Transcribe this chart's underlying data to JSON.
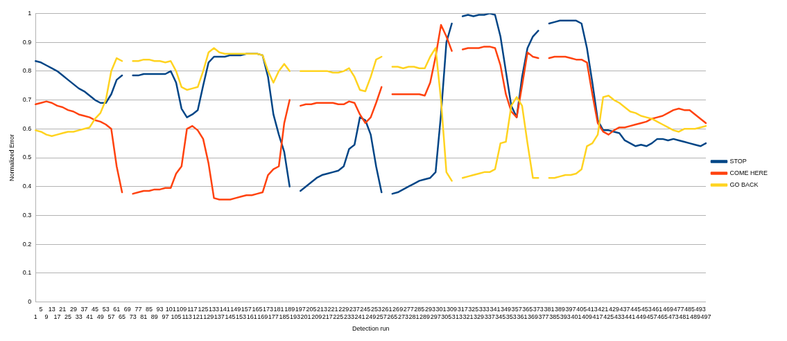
{
  "chart_data": {
    "type": "line",
    "xlabel": "Detection run",
    "ylabel": "Normalized Error",
    "ylim": [
      0,
      1
    ],
    "yticks": [
      0,
      0.1,
      0.2,
      0.3,
      0.4,
      0.5,
      0.6,
      0.7,
      0.8,
      0.9,
      1
    ],
    "grid": "y",
    "legend": "right",
    "marker": "none",
    "line_style": "solid",
    "categories": [
      "1",
      "5",
      "9",
      "13",
      "17",
      "21",
      "25",
      "29",
      "33",
      "37",
      "41",
      "45",
      "49",
      "53",
      "57",
      "61",
      "65",
      "69",
      "73",
      "77",
      "81",
      "85",
      "89",
      "93",
      "97",
      "101",
      "105",
      "109",
      "113",
      "117",
      "121",
      "125",
      "129",
      "133",
      "137",
      "141",
      "145",
      "149",
      "153",
      "157",
      "161",
      "165",
      "169",
      "173",
      "177",
      "181",
      "185",
      "189",
      "193",
      "197",
      "201",
      "205",
      "209",
      "213",
      "217",
      "221",
      "225",
      "229",
      "233",
      "237",
      "241",
      "245",
      "249",
      "253",
      "257",
      "261",
      "265",
      "269",
      "273",
      "277",
      "281",
      "285",
      "289",
      "293",
      "297",
      "301",
      "305",
      "309",
      "313",
      "317",
      "321",
      "325",
      "329",
      "333",
      "337",
      "341",
      "345",
      "349",
      "353",
      "357",
      "361",
      "365",
      "369",
      "373",
      "377",
      "381",
      "385",
      "389",
      "393",
      "397",
      "401",
      "405",
      "409",
      "413",
      "417",
      "421",
      "425",
      "429",
      "433",
      "437",
      "441",
      "445",
      "449",
      "453",
      "457",
      "461",
      "465",
      "469",
      "473",
      "477",
      "481",
      "485",
      "489",
      "493",
      "497"
    ],
    "series": [
      {
        "name": "STOP",
        "color": "#004586",
        "values": [
          0.835,
          0.83,
          0.82,
          0.81,
          0.8,
          0.785,
          0.77,
          0.755,
          0.74,
          0.73,
          0.715,
          0.7,
          0.69,
          0.69,
          0.72,
          0.77,
          0.785,
          null,
          0.785,
          0.785,
          0.79,
          0.79,
          0.79,
          0.79,
          0.79,
          0.8,
          0.76,
          0.67,
          0.64,
          0.65,
          0.665,
          0.75,
          0.83,
          0.85,
          0.85,
          0.85,
          0.855,
          0.855,
          0.855,
          0.86,
          0.86,
          0.86,
          0.855,
          0.78,
          0.65,
          0.58,
          0.52,
          0.4,
          null,
          0.385,
          0.4,
          0.415,
          0.43,
          0.44,
          0.445,
          0.45,
          0.455,
          0.47,
          0.53,
          0.545,
          0.64,
          0.63,
          0.58,
          0.47,
          0.38,
          null,
          0.375,
          0.38,
          0.39,
          0.4,
          0.41,
          0.42,
          0.425,
          0.43,
          0.45,
          0.65,
          0.9,
          0.965,
          null,
          0.99,
          0.995,
          0.99,
          0.995,
          0.995,
          1,
          0.995,
          0.92,
          0.8,
          0.68,
          0.64,
          0.78,
          0.88,
          0.92,
          0.94,
          null,
          0.965,
          0.97,
          0.975,
          0.975,
          0.975,
          0.975,
          0.965,
          0.88,
          0.76,
          0.63,
          0.595,
          0.595,
          0.59,
          0.585,
          0.56,
          0.55,
          0.54,
          0.545,
          0.54,
          0.55,
          0.565,
          0.565,
          0.56,
          0.565,
          0.56,
          0.555,
          0.55,
          0.545,
          0.54,
          0.55
        ]
      },
      {
        "name": "COME HERE",
        "color": "#ff420e",
        "values": [
          0.685,
          0.69,
          0.695,
          0.69,
          0.68,
          0.675,
          0.665,
          0.66,
          0.65,
          0.645,
          0.64,
          0.63,
          0.625,
          0.615,
          0.6,
          0.47,
          0.38,
          null,
          0.375,
          0.38,
          0.385,
          0.385,
          0.39,
          0.39,
          0.395,
          0.395,
          0.445,
          0.47,
          0.6,
          0.61,
          0.595,
          0.565,
          0.48,
          0.36,
          0.355,
          0.355,
          0.355,
          0.36,
          0.365,
          0.37,
          0.37,
          0.375,
          0.38,
          0.44,
          0.46,
          0.47,
          0.62,
          0.7,
          null,
          0.68,
          0.685,
          0.685,
          0.69,
          0.69,
          0.69,
          0.69,
          0.685,
          0.685,
          0.695,
          0.69,
          0.65,
          0.62,
          0.64,
          0.69,
          0.745,
          null,
          0.72,
          0.72,
          0.72,
          0.72,
          0.72,
          0.72,
          0.715,
          0.76,
          0.85,
          0.96,
          0.92,
          0.87,
          null,
          0.875,
          0.88,
          0.88,
          0.88,
          0.885,
          0.885,
          0.88,
          0.82,
          0.72,
          0.66,
          0.64,
          0.75,
          0.865,
          0.85,
          0.845,
          null,
          0.845,
          0.85,
          0.85,
          0.85,
          0.845,
          0.84,
          0.84,
          0.83,
          0.72,
          0.62,
          0.59,
          0.58,
          0.595,
          0.605,
          0.605,
          0.61,
          0.615,
          0.62,
          0.625,
          0.635,
          0.64,
          0.645,
          0.655,
          0.665,
          0.67,
          0.665,
          0.665,
          0.65,
          0.635,
          0.62
        ]
      },
      {
        "name": "GO BACK",
        "color": "#ffd320",
        "values": [
          0.595,
          0.59,
          0.58,
          0.575,
          0.58,
          0.585,
          0.59,
          0.59,
          0.595,
          0.6,
          0.605,
          0.635,
          0.655,
          0.7,
          0.8,
          0.845,
          0.835,
          null,
          0.835,
          0.835,
          0.84,
          0.84,
          0.835,
          0.835,
          0.83,
          0.835,
          0.8,
          0.745,
          0.735,
          0.74,
          0.745,
          0.8,
          0.865,
          0.88,
          0.865,
          0.86,
          0.86,
          0.86,
          0.86,
          0.86,
          0.86,
          0.86,
          0.855,
          0.8,
          0.76,
          0.8,
          0.825,
          0.8,
          null,
          0.8,
          0.8,
          0.8,
          0.8,
          0.8,
          0.8,
          0.795,
          0.795,
          0.8,
          0.81,
          0.78,
          0.735,
          0.73,
          0.78,
          0.84,
          0.85,
          null,
          0.815,
          0.815,
          0.81,
          0.815,
          0.815,
          0.81,
          0.81,
          0.85,
          0.88,
          0.7,
          0.45,
          0.42,
          null,
          0.43,
          0.435,
          0.44,
          0.445,
          0.45,
          0.45,
          0.46,
          0.55,
          0.555,
          0.68,
          0.71,
          0.68,
          0.55,
          0.43,
          0.43,
          null,
          0.43,
          0.43,
          0.435,
          0.44,
          0.44,
          0.445,
          0.46,
          0.54,
          0.55,
          0.58,
          0.71,
          0.715,
          0.7,
          0.69,
          0.675,
          0.66,
          0.655,
          0.645,
          0.64,
          0.635,
          0.625,
          0.615,
          0.605,
          0.595,
          0.59,
          0.6,
          0.6,
          0.6,
          0.605,
          0.61
        ]
      }
    ]
  }
}
